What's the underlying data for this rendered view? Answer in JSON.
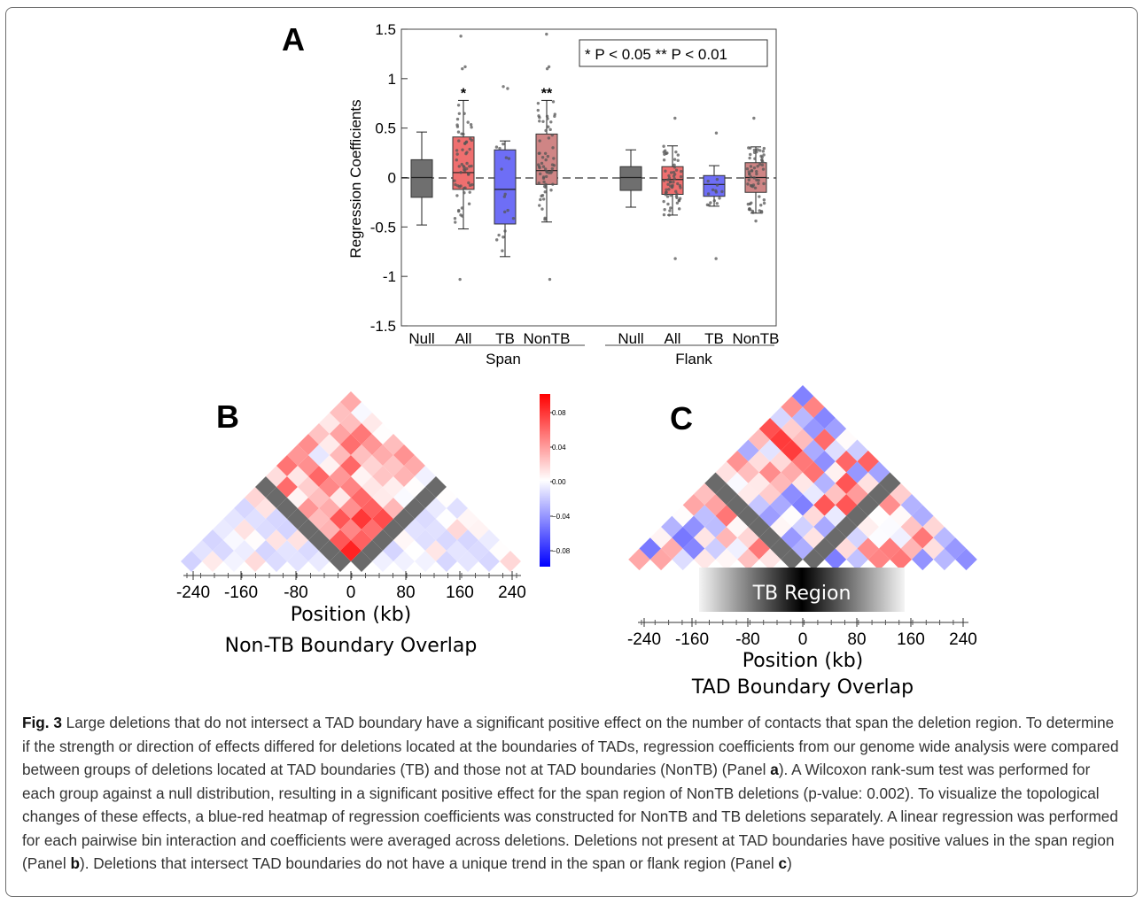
{
  "panel_a": {
    "letter": "A",
    "legend_text": "* P < 0.05 ** P < 0.01",
    "ylabel": "Regression Coefficients",
    "y_ticks": [
      "1.5",
      "1",
      "0.5",
      "0",
      "-0.5",
      "-1",
      "-1.5"
    ],
    "group_labels": [
      "Null",
      "All",
      "TB",
      "NonTB",
      "Null",
      "All",
      "TB",
      "NonTB"
    ],
    "section_labels": [
      "Span",
      "Flank"
    ],
    "significance": [
      "*",
      "**"
    ]
  },
  "chart_data": {
    "type": "box",
    "ylim": [
      -1.5,
      1.5
    ],
    "ylabel": "Regression Coefficients",
    "categories": [
      "Null",
      "All",
      "TB",
      "NonTB",
      "Null",
      "All",
      "TB",
      "NonTB"
    ],
    "sections": [
      "Span",
      "Span",
      "Span",
      "Span",
      "Flank",
      "Flank",
      "Flank",
      "Flank"
    ],
    "colors": [
      "#6f6f6f",
      "#ef6f6f",
      "#6e6ef6",
      "#cf8585",
      "#6f6f6f",
      "#ef6f6f",
      "#6e6ef6",
      "#cf8585"
    ],
    "series": [
      {
        "name": "Null",
        "whisker_low": -0.48,
        "q1": -0.2,
        "median": 0.0,
        "q3": 0.18,
        "whisker_high": 0.46
      },
      {
        "name": "All",
        "whisker_low": -0.52,
        "q1": -0.12,
        "median": 0.05,
        "q3": 0.41,
        "whisker_high": 0.78,
        "significance": "*"
      },
      {
        "name": "TB",
        "whisker_low": -0.8,
        "q1": -0.47,
        "median": -0.12,
        "q3": 0.28,
        "whisker_high": 0.37
      },
      {
        "name": "NonTB",
        "whisker_low": -0.45,
        "q1": -0.07,
        "median": 0.07,
        "q3": 0.44,
        "whisker_high": 0.78,
        "significance": "**"
      },
      {
        "name": "Null",
        "whisker_low": -0.3,
        "q1": -0.13,
        "median": 0.0,
        "q3": 0.11,
        "whisker_high": 0.28
      },
      {
        "name": "All",
        "whisker_low": -0.38,
        "q1": -0.17,
        "median": -0.02,
        "q3": 0.11,
        "whisker_high": 0.32
      },
      {
        "name": "TB",
        "whisker_low": -0.29,
        "q1": -0.19,
        "median": -0.07,
        "q3": 0.02,
        "whisker_high": 0.12
      },
      {
        "name": "NonTB",
        "whisker_low": -0.36,
        "q1": -0.15,
        "median": 0.0,
        "q3": 0.15,
        "whisker_high": 0.31
      }
    ]
  },
  "panel_b": {
    "letter": "B",
    "x_ticks": [
      "-240",
      "-160",
      "-80",
      "0",
      "80",
      "160",
      "240"
    ],
    "xlabel": "Position (kb)",
    "subtitle": "Non-TB Boundary Overlap",
    "colorbar_ticks": [
      "0.08",
      "0.04",
      "0.00",
      "−0.04",
      "−0.08"
    ]
  },
  "panel_c": {
    "letter": "C",
    "region_label": "TB Region",
    "x_ticks": [
      "-240",
      "-160",
      "-80",
      "0",
      "80",
      "160",
      "240"
    ],
    "xlabel": "Position (kb)",
    "subtitle": "TAD Boundary Overlap"
  },
  "caption": {
    "label": "Fig. 3",
    "text": " Large deletions that do not intersect a TAD boundary have a significant positive effect on the number of contacts that span the deletion region. To determine if the strength or direction of effects differed for deletions located at the boundaries of TADs, regression coefficients from our genome wide analysis were compared between groups of deletions located at TAD boundaries (TB) and those not at TAD boundaries (NonTB) (Panel ",
    "ref_a": "a",
    "text2": "). A Wilcoxon rank-sum test was performed for each group against a null distribution, resulting in a significant positive effect for the span region of NonTB deletions (p-value: 0.002). To visualize the topological changes of these effects, a blue-red heatmap of regression coefficients was constructed for NonTB and TB deletions separately. A linear regression was performed for each pairwise bin interaction and coefficients were averaged across deletions. Deletions not present at TAD boundaries have positive values in the span region (Panel ",
    "ref_b": "b",
    "text3": "). Deletions that intersect TAD boundaries do not have a unique trend in the span or flank region (Panel ",
    "ref_c": "c",
    "text4": ")"
  }
}
